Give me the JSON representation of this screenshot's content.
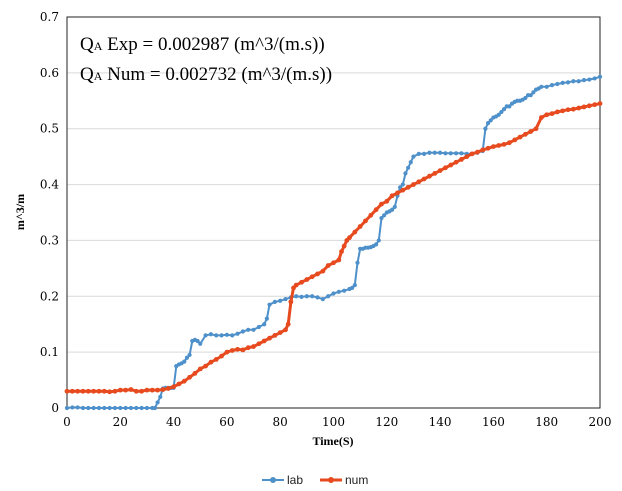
{
  "chart_data": {
    "type": "line",
    "title": "",
    "xlabel": "Time(S)",
    "ylabel": "m^3/m",
    "xlim": [
      0,
      200
    ],
    "ylim": [
      0,
      0.7
    ],
    "x_ticks": [
      0,
      20,
      40,
      60,
      80,
      100,
      120,
      140,
      160,
      180,
      200
    ],
    "y_ticks": [
      0,
      0.1,
      0.2,
      0.3,
      0.4,
      0.5,
      0.6,
      0.7
    ],
    "y_tick_labels": [
      "0",
      "0.1",
      "0.2",
      "0.3",
      "0.4",
      "0.5",
      "0.6",
      "0.7"
    ],
    "grid": "horizontal",
    "legend_position": "bottom",
    "annotations": [
      {
        "main": "Q",
        "sub": "A",
        "rest": " Exp = 0.002987 (m^3/(m.s))"
      },
      {
        "main": "Q",
        "sub": "A",
        "rest": " Num = 0.002732 (m^3/(m.s))"
      }
    ],
    "series": [
      {
        "name": "lab",
        "color": "#4e90c9",
        "marker": "circle",
        "x": [
          0,
          2,
          4,
          6,
          8,
          10,
          12,
          14,
          16,
          18,
          20,
          22,
          24,
          26,
          28,
          30,
          32,
          33,
          34,
          35,
          36,
          37,
          38,
          39,
          40,
          41,
          42,
          43,
          44,
          45,
          46,
          47,
          48,
          49,
          50,
          52,
          54,
          56,
          58,
          60,
          62,
          64,
          66,
          68,
          70,
          72,
          74,
          75,
          76,
          78,
          80,
          82,
          84,
          86,
          88,
          90,
          92,
          94,
          96,
          98,
          100,
          102,
          104,
          106,
          107,
          108,
          109,
          110,
          111,
          112,
          113,
          114,
          115,
          116,
          117,
          118,
          119,
          120,
          121,
          122,
          123,
          124,
          125,
          126,
          127,
          128,
          129,
          130,
          132,
          134,
          136,
          138,
          140,
          142,
          144,
          146,
          148,
          150,
          152,
          154,
          156,
          157,
          158,
          159,
          160,
          161,
          162,
          163,
          164,
          165,
          166,
          167,
          168,
          169,
          170,
          171,
          172,
          173,
          174,
          175,
          176,
          177,
          178,
          180,
          182,
          184,
          186,
          188,
          190,
          192,
          194,
          196,
          198,
          200
        ],
        "y": [
          0,
          0.001,
          0.001,
          0,
          0,
          0,
          0,
          0,
          0,
          0,
          0,
          0,
          0,
          0,
          0,
          0,
          0,
          0,
          0.01,
          0.02,
          0.035,
          0.036,
          0.036,
          0.036,
          0.036,
          0.075,
          0.078,
          0.08,
          0.083,
          0.09,
          0.095,
          0.12,
          0.122,
          0.12,
          0.115,
          0.13,
          0.132,
          0.13,
          0.13,
          0.131,
          0.13,
          0.133,
          0.137,
          0.14,
          0.14,
          0.145,
          0.15,
          0.16,
          0.185,
          0.19,
          0.192,
          0.195,
          0.198,
          0.2,
          0.199,
          0.2,
          0.2,
          0.198,
          0.195,
          0.2,
          0.205,
          0.208,
          0.21,
          0.213,
          0.215,
          0.22,
          0.26,
          0.285,
          0.285,
          0.287,
          0.287,
          0.288,
          0.29,
          0.293,
          0.3,
          0.34,
          0.345,
          0.35,
          0.352,
          0.355,
          0.36,
          0.38,
          0.395,
          0.4,
          0.42,
          0.43,
          0.44,
          0.45,
          0.455,
          0.455,
          0.457,
          0.457,
          0.457,
          0.456,
          0.456,
          0.456,
          0.456,
          0.455,
          0.455,
          0.457,
          0.46,
          0.5,
          0.51,
          0.515,
          0.52,
          0.522,
          0.525,
          0.53,
          0.535,
          0.54,
          0.54,
          0.545,
          0.548,
          0.55,
          0.55,
          0.552,
          0.555,
          0.56,
          0.56,
          0.565,
          0.57,
          0.572,
          0.575,
          0.575,
          0.578,
          0.58,
          0.582,
          0.583,
          0.585,
          0.585,
          0.587,
          0.588,
          0.59,
          0.593
        ]
      },
      {
        "name": "num",
        "color": "#e64a1e",
        "marker": "circle",
        "x": [
          0,
          2,
          4,
          6,
          8,
          10,
          12,
          14,
          16,
          18,
          20,
          22,
          24,
          26,
          28,
          30,
          32,
          34,
          36,
          38,
          40,
          42,
          44,
          46,
          48,
          50,
          52,
          54,
          56,
          58,
          60,
          62,
          64,
          66,
          68,
          70,
          72,
          74,
          76,
          78,
          80,
          82,
          83,
          84,
          85,
          86,
          88,
          90,
          92,
          94,
          96,
          98,
          100,
          102,
          103,
          104,
          105,
          106,
          108,
          110,
          112,
          114,
          116,
          118,
          120,
          122,
          124,
          126,
          128,
          130,
          132,
          134,
          136,
          138,
          140,
          142,
          144,
          146,
          148,
          150,
          152,
          154,
          156,
          158,
          160,
          162,
          164,
          166,
          168,
          170,
          172,
          174,
          176,
          178,
          180,
          182,
          184,
          186,
          188,
          190,
          192,
          194,
          196,
          198,
          200
        ],
        "y": [
          0.03,
          0.03,
          0.03,
          0.03,
          0.03,
          0.03,
          0.03,
          0.03,
          0.029,
          0.03,
          0.032,
          0.032,
          0.033,
          0.03,
          0.03,
          0.032,
          0.032,
          0.032,
          0.033,
          0.035,
          0.038,
          0.043,
          0.048,
          0.055,
          0.062,
          0.07,
          0.075,
          0.082,
          0.087,
          0.093,
          0.1,
          0.103,
          0.105,
          0.104,
          0.108,
          0.11,
          0.115,
          0.12,
          0.125,
          0.13,
          0.135,
          0.14,
          0.15,
          0.19,
          0.215,
          0.22,
          0.225,
          0.23,
          0.235,
          0.24,
          0.245,
          0.255,
          0.26,
          0.265,
          0.28,
          0.29,
          0.3,
          0.305,
          0.315,
          0.325,
          0.335,
          0.345,
          0.355,
          0.365,
          0.37,
          0.38,
          0.385,
          0.39,
          0.395,
          0.4,
          0.405,
          0.41,
          0.415,
          0.42,
          0.425,
          0.43,
          0.435,
          0.44,
          0.445,
          0.45,
          0.455,
          0.458,
          0.462,
          0.465,
          0.468,
          0.47,
          0.472,
          0.475,
          0.48,
          0.485,
          0.49,
          0.495,
          0.5,
          0.52,
          0.525,
          0.527,
          0.53,
          0.532,
          0.534,
          0.535,
          0.537,
          0.539,
          0.541,
          0.543,
          0.545
        ]
      }
    ]
  }
}
